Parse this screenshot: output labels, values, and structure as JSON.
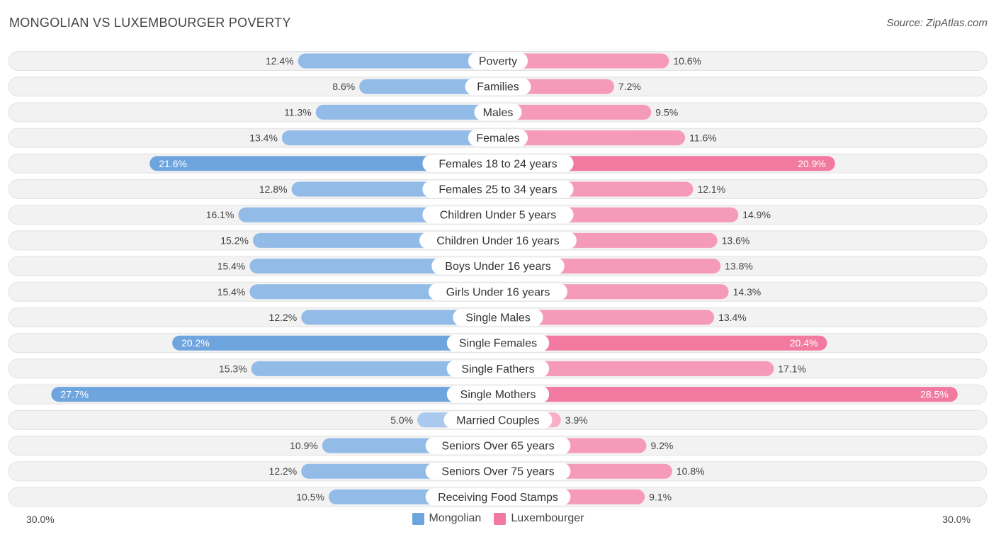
{
  "header": {
    "title": "MONGOLIAN VS LUXEMBOURGER POVERTY",
    "source": "Source: ZipAtlas.com"
  },
  "colors": {
    "left": "#6fa5df",
    "left_light": "#a9c9ef",
    "right": "#f27aa0",
    "right_light": "#f8aec6"
  },
  "chart_data": {
    "type": "bar",
    "orientation": "horizontal-diverging",
    "title": "MONGOLIAN VS LUXEMBOURGER POVERTY",
    "xlim": [
      0,
      30
    ],
    "axis_left_label": "30.0%",
    "axis_right_label": "30.0%",
    "legend": [
      "Mongolian",
      "Luxembourger"
    ],
    "categories": [
      "Poverty",
      "Families",
      "Males",
      "Females",
      "Females 18 to 24 years",
      "Females 25 to 34 years",
      "Children Under 5 years",
      "Children Under 16 years",
      "Boys Under 16 years",
      "Girls Under 16 years",
      "Single Males",
      "Single Females",
      "Single Fathers",
      "Single Mothers",
      "Married Couples",
      "Seniors Over 65 years",
      "Seniors Over 75 years",
      "Receiving Food Stamps"
    ],
    "series": [
      {
        "name": "Mongolian",
        "values": [
          12.4,
          8.6,
          11.3,
          13.4,
          21.6,
          12.8,
          16.1,
          15.2,
          15.4,
          15.4,
          12.2,
          20.2,
          15.3,
          27.7,
          5.0,
          10.9,
          12.2,
          10.5
        ],
        "labels": [
          "12.4%",
          "8.6%",
          "11.3%",
          "13.4%",
          "21.6%",
          "12.8%",
          "16.1%",
          "15.2%",
          "15.4%",
          "15.4%",
          "12.2%",
          "20.2%",
          "15.3%",
          "27.7%",
          "5.0%",
          "10.9%",
          "12.2%",
          "10.5%"
        ]
      },
      {
        "name": "Luxembourger",
        "values": [
          10.6,
          7.2,
          9.5,
          11.6,
          20.9,
          12.1,
          14.9,
          13.6,
          13.8,
          14.3,
          13.4,
          20.4,
          17.1,
          28.5,
          3.9,
          9.2,
          10.8,
          9.1
        ],
        "labels": [
          "10.6%",
          "7.2%",
          "9.5%",
          "11.6%",
          "20.9%",
          "12.1%",
          "14.9%",
          "13.6%",
          "13.8%",
          "14.3%",
          "13.4%",
          "20.4%",
          "17.1%",
          "28.5%",
          "3.9%",
          "9.2%",
          "10.8%",
          "9.1%"
        ]
      }
    ]
  }
}
